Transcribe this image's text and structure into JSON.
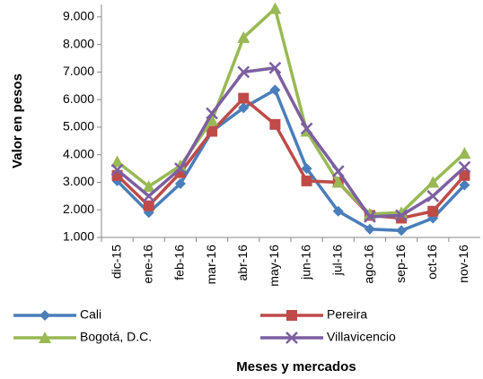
{
  "chart_data": {
    "type": "line",
    "y_label": "Valor en pesos",
    "x_label": "Meses  y mercados",
    "categories": [
      "dic-15",
      "ene-16",
      "feb-16",
      "mar-16",
      "abr-16",
      "may-16",
      "jun-16",
      "jul-16",
      "ago-16",
      "sep-16",
      "oct-16",
      "nov-16"
    ],
    "series": [
      {
        "name": "Cali",
        "color": "#4a7ebb",
        "marker": "diamond",
        "values": [
          3050,
          1900,
          2950,
          4850,
          5700,
          6350,
          3500,
          1950,
          1300,
          1250,
          1700,
          2900
        ]
      },
      {
        "name": "Pereira",
        "color": "#be4b48",
        "marker": "square",
        "values": [
          3250,
          2150,
          3350,
          4850,
          6050,
          5100,
          3050,
          3000,
          1800,
          1700,
          1950,
          3250
        ]
      },
      {
        "name": "Bogotá, D.C.",
        "color": "#98b954",
        "marker": "triangle",
        "values": [
          3750,
          2850,
          3600,
          5250,
          8250,
          9300,
          4850,
          3000,
          1850,
          1900,
          3000,
          4050
        ]
      },
      {
        "name": "Villavicencio",
        "color": "#7d5fa0",
        "marker": "x",
        "values": [
          3450,
          2500,
          3500,
          5500,
          7000,
          7150,
          4950,
          3400,
          1750,
          1800,
          2500,
          3550
        ]
      }
    ],
    "ylim": [
      1000,
      9450
    ],
    "yticks": [
      {
        "value": 1000,
        "label": "1.000"
      },
      {
        "value": 2000,
        "label": "2.000"
      },
      {
        "value": 3000,
        "label": "3.000"
      },
      {
        "value": 4000,
        "label": "4.000"
      },
      {
        "value": 5000,
        "label": "5.000"
      },
      {
        "value": 6000,
        "label": "6.000"
      },
      {
        "value": 7000,
        "label": "7.000"
      },
      {
        "value": 8000,
        "label": "8.000"
      },
      {
        "value": 9000,
        "label": "9.000"
      }
    ],
    "grid": false,
    "legend": "bottom"
  }
}
